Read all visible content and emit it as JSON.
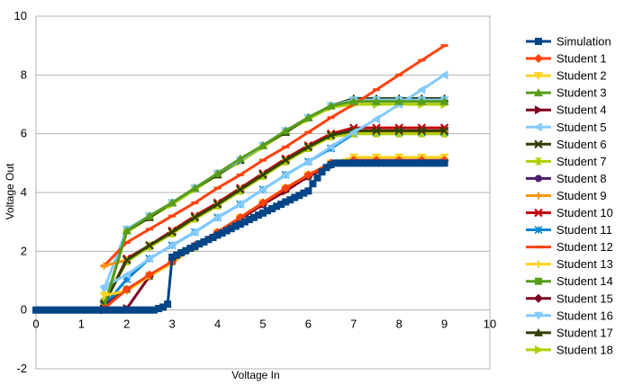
{
  "chart_data": {
    "type": "line",
    "title": "",
    "xlabel": "Voltage In",
    "ylabel": "Voltage Out",
    "xlim": [
      0,
      10
    ],
    "ylim": [
      -2,
      10
    ],
    "xticks": [
      "0",
      "1",
      "2",
      "3",
      "4",
      "5",
      "6",
      "7",
      "8",
      "9",
      "10"
    ],
    "yticks": [
      "-2",
      "0",
      "2",
      "4",
      "6",
      "8",
      "10"
    ],
    "grid": "horizontal",
    "legend": "right",
    "series": [
      {
        "name": "Simulation",
        "color": "#004586",
        "marker": "square",
        "x": [
          0,
          0.1,
          0.2,
          0.3,
          0.4,
          0.5,
          0.6,
          0.7,
          0.8,
          0.9,
          1.0,
          1.1,
          1.2,
          1.3,
          1.4,
          1.5,
          1.6,
          1.7,
          1.8,
          1.9,
          2.0,
          2.1,
          2.2,
          2.3,
          2.4,
          2.5,
          2.6,
          2.7,
          2.8,
          2.9,
          3.0,
          3.1,
          3.2,
          3.3,
          3.4,
          3.5,
          3.6,
          3.7,
          3.8,
          3.9,
          4.0,
          4.1,
          4.2,
          4.3,
          4.4,
          4.5,
          4.6,
          4.7,
          4.8,
          4.9,
          5.0,
          5.1,
          5.2,
          5.3,
          5.4,
          5.5,
          5.6,
          5.7,
          5.8,
          5.9,
          6.0,
          6.1,
          6.2,
          6.3,
          6.4,
          6.5,
          6.6,
          6.7,
          6.8,
          6.9,
          7.0,
          7.1,
          7.2,
          7.3,
          7.4,
          7.5,
          7.6,
          7.7,
          7.8,
          7.9,
          8.0,
          8.1,
          8.2,
          8.3,
          8.4,
          8.5,
          8.6,
          8.7,
          8.8,
          8.9,
          9.0
        ],
        "y": [
          0,
          0,
          0,
          0,
          0,
          0,
          0,
          0,
          0,
          0,
          0,
          0,
          0,
          0,
          0,
          0,
          0,
          0,
          0,
          0,
          0,
          0,
          0,
          0,
          0,
          0,
          0,
          0.05,
          0.1,
          0.2,
          1.8,
          1.87,
          1.95,
          2.02,
          2.1,
          2.17,
          2.25,
          2.32,
          2.4,
          2.47,
          2.55,
          2.62,
          2.7,
          2.77,
          2.85,
          2.92,
          3.0,
          3.08,
          3.15,
          3.23,
          3.3,
          3.38,
          3.45,
          3.53,
          3.6,
          3.68,
          3.75,
          3.83,
          3.9,
          3.98,
          4.05,
          4.3,
          4.5,
          4.7,
          4.85,
          4.95,
          5.0,
          5.0,
          5.0,
          5.0,
          5.0,
          5.0,
          5.0,
          5.0,
          5.0,
          5.0,
          5.0,
          5.0,
          5.0,
          5.0,
          5.0,
          5.0,
          5.0,
          5.0,
          5.0,
          5.0,
          5.0,
          5.0,
          5.0,
          5.0,
          5.0
        ]
      },
      {
        "name": "Student 1",
        "color": "#ff420e",
        "marker": "diamond",
        "x": [
          1.5,
          2.0,
          2.5,
          3.0,
          3.5,
          4.0,
          4.5,
          5.0,
          5.5,
          6.0,
          6.5,
          7.0,
          7.5,
          8.0,
          8.5,
          9.0
        ],
        "y": [
          0.05,
          0.7,
          1.2,
          1.65,
          2.2,
          2.65,
          3.15,
          3.65,
          4.15,
          4.6,
          5.0,
          5.1,
          5.1,
          5.1,
          5.1,
          5.1
        ]
      },
      {
        "name": "Student 2",
        "color": "#ffd320",
        "marker": "triangle-down",
        "x": [
          1.5,
          2.0,
          2.5,
          3.0,
          3.5,
          4.0,
          4.5,
          5.0,
          5.5,
          6.0,
          6.5,
          7.0,
          7.5,
          8.0,
          8.5,
          9.0
        ],
        "y": [
          0.5,
          0.65,
          1.15,
          1.6,
          2.15,
          2.65,
          3.15,
          3.65,
          4.15,
          4.6,
          5.0,
          5.2,
          5.2,
          5.2,
          5.2,
          5.2
        ]
      },
      {
        "name": "Student 3",
        "color": "#579d1c",
        "marker": "triangle-up",
        "x": [
          1.5,
          2.0,
          2.5,
          3.0,
          3.5,
          4.0,
          4.5,
          5.0,
          5.5,
          6.0,
          6.5,
          7.0,
          7.5,
          8.0,
          8.5,
          9.0
        ],
        "y": [
          0.1,
          2.7,
          3.2,
          3.65,
          4.15,
          4.65,
          5.15,
          5.6,
          6.1,
          6.55,
          6.95,
          7.1,
          7.1,
          7.1,
          7.1,
          7.1
        ]
      },
      {
        "name": "Student 4",
        "color": "#7e0021",
        "marker": "triangle-right",
        "x": [
          1.5,
          2.0,
          2.5,
          3.0,
          3.5,
          4.0,
          4.5,
          5.0,
          5.5,
          6.0,
          6.5,
          7.0,
          7.5,
          8.0,
          8.5,
          9.0
        ],
        "y": [
          0,
          0.05,
          1.15,
          1.65,
          2.15,
          2.6,
          3.1,
          3.6,
          4.05,
          4.55,
          4.95,
          5.05,
          5.05,
          5.05,
          5.05,
          5.05
        ]
      },
      {
        "name": "Student 5",
        "color": "#83caff",
        "marker": "triangle-left",
        "x": [
          1.5,
          2.0,
          2.5,
          3.0,
          3.5,
          4.0,
          4.5,
          5.0,
          5.5,
          6.0,
          6.5,
          7.0,
          7.5,
          8.0,
          8.5,
          9.0
        ],
        "y": [
          0.8,
          1.2,
          1.75,
          2.2,
          2.65,
          3.15,
          3.6,
          4.1,
          4.6,
          5.05,
          5.55,
          6.05,
          6.5,
          7.0,
          7.5,
          8.0
        ]
      },
      {
        "name": "Student 6",
        "color": "#314004",
        "marker": "x",
        "x": [
          1.5,
          2.0,
          2.5,
          3.0,
          3.5,
          4.0,
          4.5,
          5.0,
          5.5,
          6.0,
          6.5,
          7.0,
          7.5,
          8.0,
          8.5,
          9.0
        ],
        "y": [
          0.2,
          1.7,
          2.2,
          2.65,
          3.15,
          3.6,
          4.1,
          4.6,
          5.1,
          5.55,
          5.95,
          6.1,
          6.1,
          6.1,
          6.1,
          6.1
        ]
      },
      {
        "name": "Student 7",
        "color": "#aecf00",
        "marker": "hourglass",
        "x": [
          1.5,
          2.0,
          2.5,
          3.0,
          3.5,
          4.0,
          4.5,
          5.0,
          5.5,
          6.0,
          6.5,
          7.0,
          7.5,
          8.0,
          8.5,
          9.0
        ],
        "y": [
          0.3,
          1.65,
          2.15,
          2.6,
          3.1,
          3.55,
          4.05,
          4.55,
          5.05,
          5.5,
          5.9,
          6.0,
          6.0,
          6.0,
          6.0,
          6.0
        ]
      },
      {
        "name": "Student 8",
        "color": "#4b1f6f",
        "marker": "circle",
        "x": [
          1.5,
          2.0,
          2.5,
          3.0,
          3.5,
          4.0,
          4.5,
          5.0,
          5.5,
          6.0,
          6.5,
          7.0,
          7.5,
          8.0,
          8.5,
          9.0
        ],
        "y": [
          0.15,
          0.7,
          1.15,
          1.65,
          2.15,
          2.6,
          3.1,
          3.6,
          4.1,
          4.55,
          4.95,
          5.05,
          5.05,
          5.05,
          5.05,
          5.05
        ]
      },
      {
        "name": "Student 9",
        "color": "#ff950e",
        "marker": "plus",
        "x": [
          1.5,
          2.0,
          2.5,
          3.0,
          3.5,
          4.0,
          4.5,
          5.0,
          5.5,
          6.0,
          6.5,
          7.0,
          7.5,
          8.0,
          8.5,
          9.0
        ],
        "y": [
          1.5,
          1.7,
          2.2,
          2.65,
          3.15,
          3.6,
          4.1,
          4.6,
          5.1,
          5.55,
          5.95,
          6.05,
          6.05,
          6.05,
          6.05,
          6.05
        ]
      },
      {
        "name": "Student 10",
        "color": "#c5000b",
        "marker": "x",
        "x": [
          1.5,
          2.0,
          2.5,
          3.0,
          3.5,
          4.0,
          4.5,
          5.0,
          5.5,
          6.0,
          6.5,
          7.0,
          7.5,
          8.0,
          8.5,
          9.0
        ],
        "y": [
          0.2,
          1.75,
          2.2,
          2.7,
          3.2,
          3.65,
          4.15,
          4.65,
          5.15,
          5.6,
          6.0,
          6.2,
          6.2,
          6.2,
          6.2,
          6.2
        ]
      },
      {
        "name": "Student 11",
        "color": "#0084d1",
        "marker": "asterisk",
        "x": [
          1.5,
          2.0,
          2.5,
          3.0,
          3.5,
          4.0,
          4.5,
          5.0,
          5.5,
          6.0,
          6.5,
          7.0,
          7.5,
          8.0,
          8.5,
          9.0
        ],
        "y": [
          0.15,
          1.05,
          1.75,
          2.2,
          2.65,
          3.15,
          3.6,
          4.1,
          4.6,
          5.05,
          5.5,
          6.0,
          6.05,
          6.05,
          6.05,
          6.05
        ]
      },
      {
        "name": "Student 12",
        "color": "#ff420e",
        "marker": "dash",
        "x": [
          1.5,
          2.0,
          2.5,
          3.0,
          3.5,
          4.0,
          4.5,
          5.0,
          5.5,
          6.0,
          6.5,
          7.0,
          7.5,
          8.0,
          8.5,
          9.0
        ],
        "y": [
          1.5,
          2.3,
          2.75,
          3.2,
          3.65,
          4.15,
          4.6,
          5.1,
          5.55,
          6.05,
          6.55,
          7.0,
          7.5,
          8.0,
          8.5,
          9.0
        ]
      },
      {
        "name": "Student 13",
        "color": "#ffd320",
        "marker": "plus",
        "x": [
          1.5,
          2.0,
          2.5,
          3.0,
          3.5,
          4.0,
          4.5,
          5.0,
          5.5,
          6.0,
          6.5,
          7.0,
          7.5,
          8.0,
          8.5,
          9.0
        ],
        "y": [
          0.25,
          1.65,
          2.15,
          2.6,
          3.1,
          3.55,
          4.05,
          4.55,
          5.05,
          5.5,
          5.9,
          6.0,
          6.0,
          6.0,
          6.0,
          6.0
        ]
      },
      {
        "name": "Student 14",
        "color": "#579d1c",
        "marker": "square",
        "x": [
          1.5,
          2.0,
          2.5,
          3.0,
          3.5,
          4.0,
          4.5,
          5.0,
          5.5,
          6.0,
          6.5,
          7.0,
          7.5,
          8.0,
          8.5,
          9.0
        ],
        "y": [
          0.25,
          0.7,
          1.15,
          1.65,
          2.15,
          2.6,
          3.1,
          3.6,
          4.1,
          4.55,
          4.95,
          5.05,
          5.05,
          5.05,
          5.05,
          5.05
        ]
      },
      {
        "name": "Student 15",
        "color": "#7e0021",
        "marker": "diamond",
        "x": [
          1.5,
          2.0,
          2.5,
          3.0,
          3.5,
          4.0,
          4.5,
          5.0,
          5.5,
          6.0,
          6.5,
          7.0,
          7.5,
          8.0,
          8.5,
          9.0
        ],
        "y": [
          0.15,
          0.7,
          1.15,
          1.65,
          2.15,
          2.6,
          3.1,
          3.6,
          4.1,
          4.55,
          4.95,
          5.1,
          5.1,
          5.1,
          5.1,
          5.1
        ]
      },
      {
        "name": "Student 16",
        "color": "#83caff",
        "marker": "triangle-down",
        "x": [
          1.5,
          2.0,
          2.5,
          3.0,
          3.5,
          4.0,
          4.5,
          5.0,
          5.5,
          6.0,
          6.5,
          7.0,
          7.5,
          8.0,
          8.5,
          9.0
        ],
        "y": [
          0.7,
          2.75,
          3.2,
          3.65,
          4.15,
          4.65,
          5.1,
          5.6,
          6.1,
          6.55,
          6.95,
          7.15,
          7.15,
          7.15,
          7.15,
          7.15
        ]
      },
      {
        "name": "Student 17",
        "color": "#314004",
        "marker": "triangle-up",
        "x": [
          1.5,
          2.0,
          2.5,
          3.0,
          3.5,
          4.0,
          4.5,
          5.0,
          5.5,
          6.0,
          6.5,
          7.0,
          7.5,
          8.0,
          8.5,
          9.0
        ],
        "y": [
          0.1,
          2.7,
          3.15,
          3.65,
          4.15,
          4.6,
          5.1,
          5.6,
          6.05,
          6.55,
          6.95,
          7.2,
          7.2,
          7.2,
          7.2,
          7.2
        ]
      },
      {
        "name": "Student 18",
        "color": "#aecf00",
        "marker": "triangle-right",
        "x": [
          1.5,
          2.0,
          2.5,
          3.0,
          3.5,
          4.0,
          4.5,
          5.0,
          5.5,
          6.0,
          6.5,
          7.0,
          7.5,
          8.0,
          8.5,
          9.0
        ],
        "y": [
          0.1,
          2.65,
          3.15,
          3.6,
          4.1,
          4.6,
          5.05,
          5.55,
          6.05,
          6.5,
          6.9,
          7.0,
          7.0,
          7.0,
          7.0,
          7.0
        ]
      }
    ]
  }
}
